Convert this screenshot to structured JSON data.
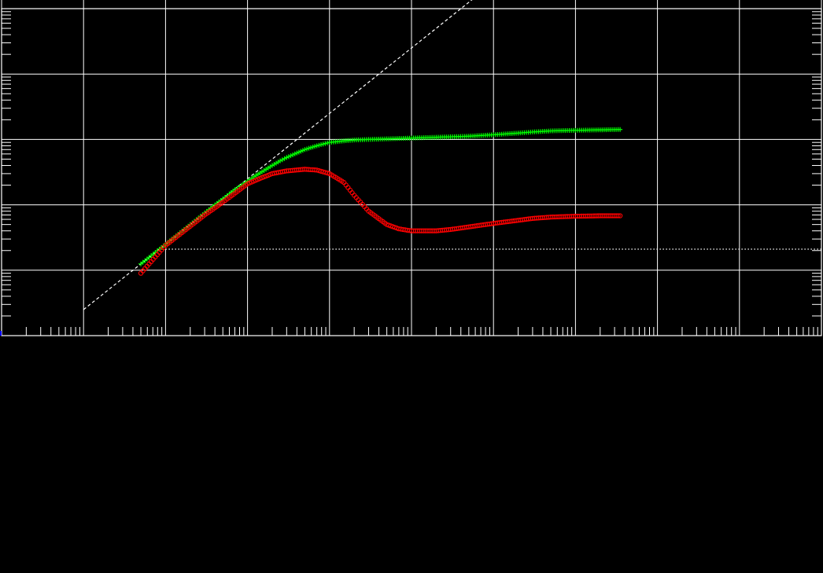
{
  "chart_data": {
    "type": "scatter",
    "title": "",
    "xlabel": "",
    "ylabel": "",
    "x_scale": "log",
    "y_scale": "log",
    "xlim": [
      0.1,
      1000000000
    ],
    "ylim": [
      0.001,
      100
    ],
    "grid": true,
    "legend": "none",
    "colors": {
      "background": "#000000",
      "grid": "#ffffff",
      "series_plus": "#00ff00",
      "series_circle": "#ff0000",
      "reference": "#ffffff",
      "left_marker": "#0000ff"
    },
    "series": [
      {
        "marker": "plus",
        "x": [
          5,
          10,
          20,
          30,
          40,
          50,
          60,
          70,
          80,
          100,
          120,
          150,
          200,
          250,
          300,
          400,
          500,
          700,
          1000,
          1500,
          2000,
          3000,
          5000,
          10000,
          20000,
          50000,
          100000,
          200000,
          300000,
          500000,
          1000000,
          2000000,
          3500000
        ],
        "y": [
          0.0125,
          0.025,
          0.05,
          0.075,
          0.1,
          0.123,
          0.147,
          0.17,
          0.19,
          0.23,
          0.27,
          0.32,
          0.4,
          0.47,
          0.53,
          0.62,
          0.7,
          0.8,
          0.9,
          0.95,
          0.98,
          1.0,
          1.02,
          1.05,
          1.08,
          1.12,
          1.18,
          1.25,
          1.3,
          1.35,
          1.38,
          1.4,
          1.42
        ]
      },
      {
        "marker": "circle",
        "x": [
          5,
          10,
          20,
          30,
          40,
          50,
          60,
          80,
          100,
          150,
          200,
          300,
          500,
          700,
          1000,
          1500,
          2000,
          3000,
          5000,
          7000,
          10000,
          20000,
          30000,
          50000,
          100000,
          200000,
          300000,
          500000,
          1000000,
          2000000,
          3500000
        ],
        "y": [
          0.009,
          0.024,
          0.047,
          0.07,
          0.09,
          0.11,
          0.13,
          0.17,
          0.21,
          0.26,
          0.3,
          0.33,
          0.35,
          0.34,
          0.3,
          0.22,
          0.14,
          0.08,
          0.05,
          0.043,
          0.04,
          0.04,
          0.042,
          0.046,
          0.052,
          0.058,
          0.062,
          0.065,
          0.067,
          0.068,
          0.068
        ]
      }
    ],
    "reference_lines": [
      {
        "style": "dashed",
        "label": "",
        "x": [
          1,
          1000000
        ],
        "y": [
          0.0025,
          2500
        ]
      },
      {
        "style": "dotted",
        "label": "",
        "x": [
          10,
          1000000000
        ],
        "y": [
          0.021,
          0.021
        ]
      }
    ]
  }
}
